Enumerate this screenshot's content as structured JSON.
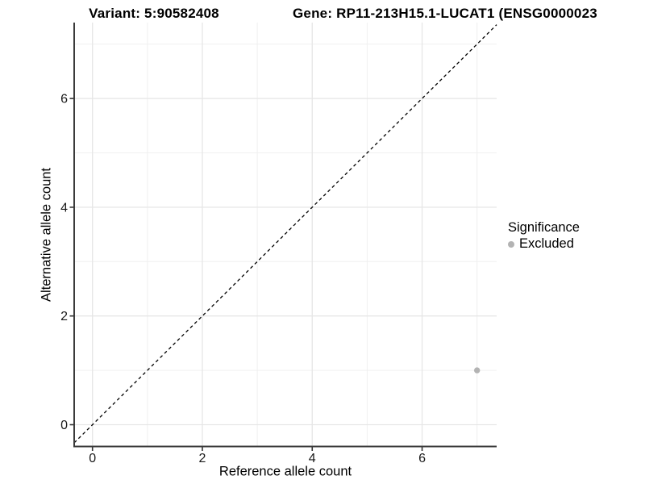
{
  "header": {
    "variant_title": "Variant: 5:90582408",
    "gene_title": "Gene: RP11-213H15.1-LUCAT1 (ENSG0000023"
  },
  "colors": {
    "point": "#b3b3b3",
    "grid_major": "#e6e6e6",
    "grid_minor": "#f0f0f0",
    "axis_line": "#3b3b3b",
    "tick_mark": "#333333",
    "tick_label": "#1a1a1a",
    "identity_line": "#000000",
    "background": "#ffffff"
  },
  "chart_data": {
    "type": "scatter",
    "title_left": "Variant: 5:90582408",
    "title_right": "Gene: RP11-213H15.1-LUCAT1 (ENSG0000023",
    "xlabel": "Reference allele count",
    "ylabel": "Alternative allele count",
    "xlim": [
      -0.35,
      7.36
    ],
    "ylim": [
      -0.35,
      7.41
    ],
    "x_ticks": [
      0,
      2,
      4,
      6
    ],
    "y_ticks": [
      0,
      2,
      4,
      6
    ],
    "x_minor_gridlines": [
      1,
      3,
      5,
      7
    ],
    "y_minor_gridlines": [
      1,
      3,
      5,
      7
    ],
    "grid": true,
    "reference_line": {
      "type": "diagonal",
      "equation": "y = x",
      "style": "dashed",
      "color": "#000000"
    },
    "series": [
      {
        "name": "Excluded",
        "color": "#b3b3b3",
        "points": [
          {
            "x": 7,
            "y": 1
          }
        ]
      }
    ],
    "legend": {
      "title": "Significance",
      "position": "right",
      "entries": [
        {
          "label": "Excluded",
          "color": "#b3b3b3"
        }
      ]
    }
  }
}
